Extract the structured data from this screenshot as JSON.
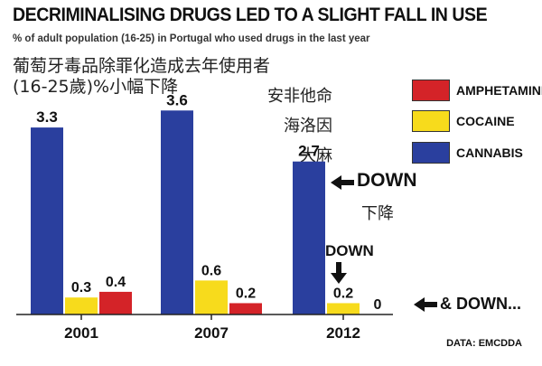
{
  "header": {
    "title": "DECRIMINALISING DRUGS LED TO A SLIGHT FALL IN USE",
    "subtitle": "% of adult population (16-25) in Portugal who used drugs in the last year",
    "zh_subtitle": "葡萄牙毒品除罪化造成去年使用者(16-25歲)%小幅下降"
  },
  "legend": [
    {
      "zh": "安非他命",
      "label": "AMPHETAMINE",
      "color": "#d42328"
    },
    {
      "zh": "海洛因",
      "label": "COCAINE",
      "color": "#f7db1c"
    },
    {
      "zh": "大麻",
      "label": "CANNABIS",
      "color": "#2a3f9e"
    }
  ],
  "annotations": {
    "down_cannabis": "DOWN",
    "down_cannabis_zh": "下降",
    "down_cocaine": "DOWN",
    "down_amphetamine": "& DOWN...",
    "source": "DATA: EMCDDA"
  },
  "chart_data": {
    "type": "bar",
    "title": "DECRIMINALISING DRUGS LED TO A SLIGHT FALL IN USE",
    "subtitle": "% of adult population (16-25) in Portugal who used drugs in the last year",
    "categories": [
      "2001",
      "2007",
      "2012"
    ],
    "series": [
      {
        "name": "CANNABIS",
        "color": "#2a3f9e",
        "values": [
          3.3,
          3.6,
          2.7
        ],
        "labels": [
          "3.3",
          "3.6",
          "2.7"
        ]
      },
      {
        "name": "COCAINE",
        "color": "#f7db1c",
        "values": [
          0.3,
          0.6,
          0.2
        ],
        "labels": [
          "0.3",
          "0.6",
          "0.2"
        ]
      },
      {
        "name": "AMPHETAMINE",
        "color": "#d42328",
        "values": [
          0.4,
          0.2,
          0
        ],
        "labels": [
          "0.4",
          "0.2",
          "0"
        ]
      }
    ],
    "ylim": [
      0,
      3.7
    ],
    "grid": false,
    "legend_position": "right"
  }
}
